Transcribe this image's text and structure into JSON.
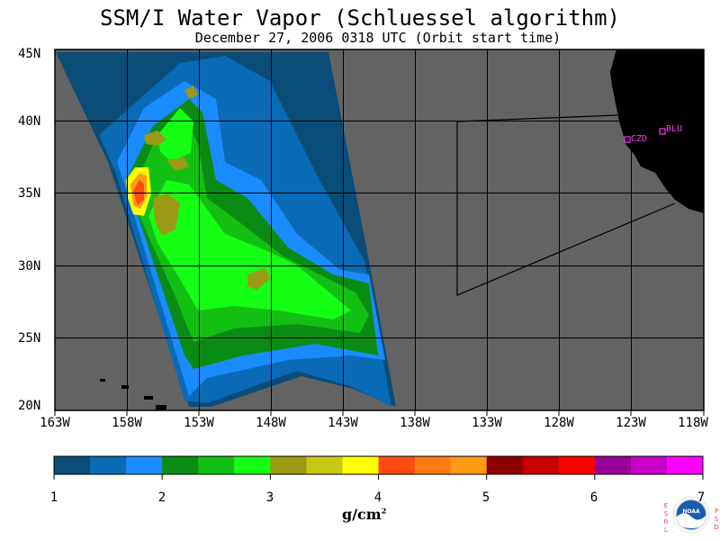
{
  "title": "SSM/I Water Vapor (Schluessel algorithm)",
  "subtitle": "December 27, 2006  0318 UTC  (Orbit start time)",
  "lat_labels": [
    "45N",
    "40N",
    "35N",
    "30N",
    "25N",
    "20N"
  ],
  "lon_labels": [
    "163W",
    "158W",
    "153W",
    "148W",
    "143W",
    "138W",
    "133W",
    "128W",
    "123W",
    "118W"
  ],
  "stations": [
    {
      "id": "CZD",
      "label": "CZD"
    },
    {
      "id": "BLU",
      "label": "BLU"
    }
  ],
  "colorbar": {
    "ticks": [
      "1",
      "2",
      "3",
      "4",
      "5",
      "6",
      "7"
    ],
    "units": "g/cm",
    "units_sup": "2",
    "colors": [
      "#0a4d78",
      "#0a6ab5",
      "#1a8cff",
      "#0a8c14",
      "#14bf14",
      "#14ff14",
      "#9a9a14",
      "#c8c814",
      "#ffff00",
      "#ff4a14",
      "#ff7a14",
      "#ff9a14",
      "#8c0000",
      "#c80000",
      "#ff0000",
      "#9a009a",
      "#c800c8",
      "#ff00ff"
    ]
  },
  "logo": {
    "left_text": "ESRL",
    "right_text": "PSD",
    "center": "NOAA"
  },
  "colors": {
    "ocean": "#636363",
    "land": "#000000",
    "station": "#ff33ff",
    "grid": "#000000"
  }
}
